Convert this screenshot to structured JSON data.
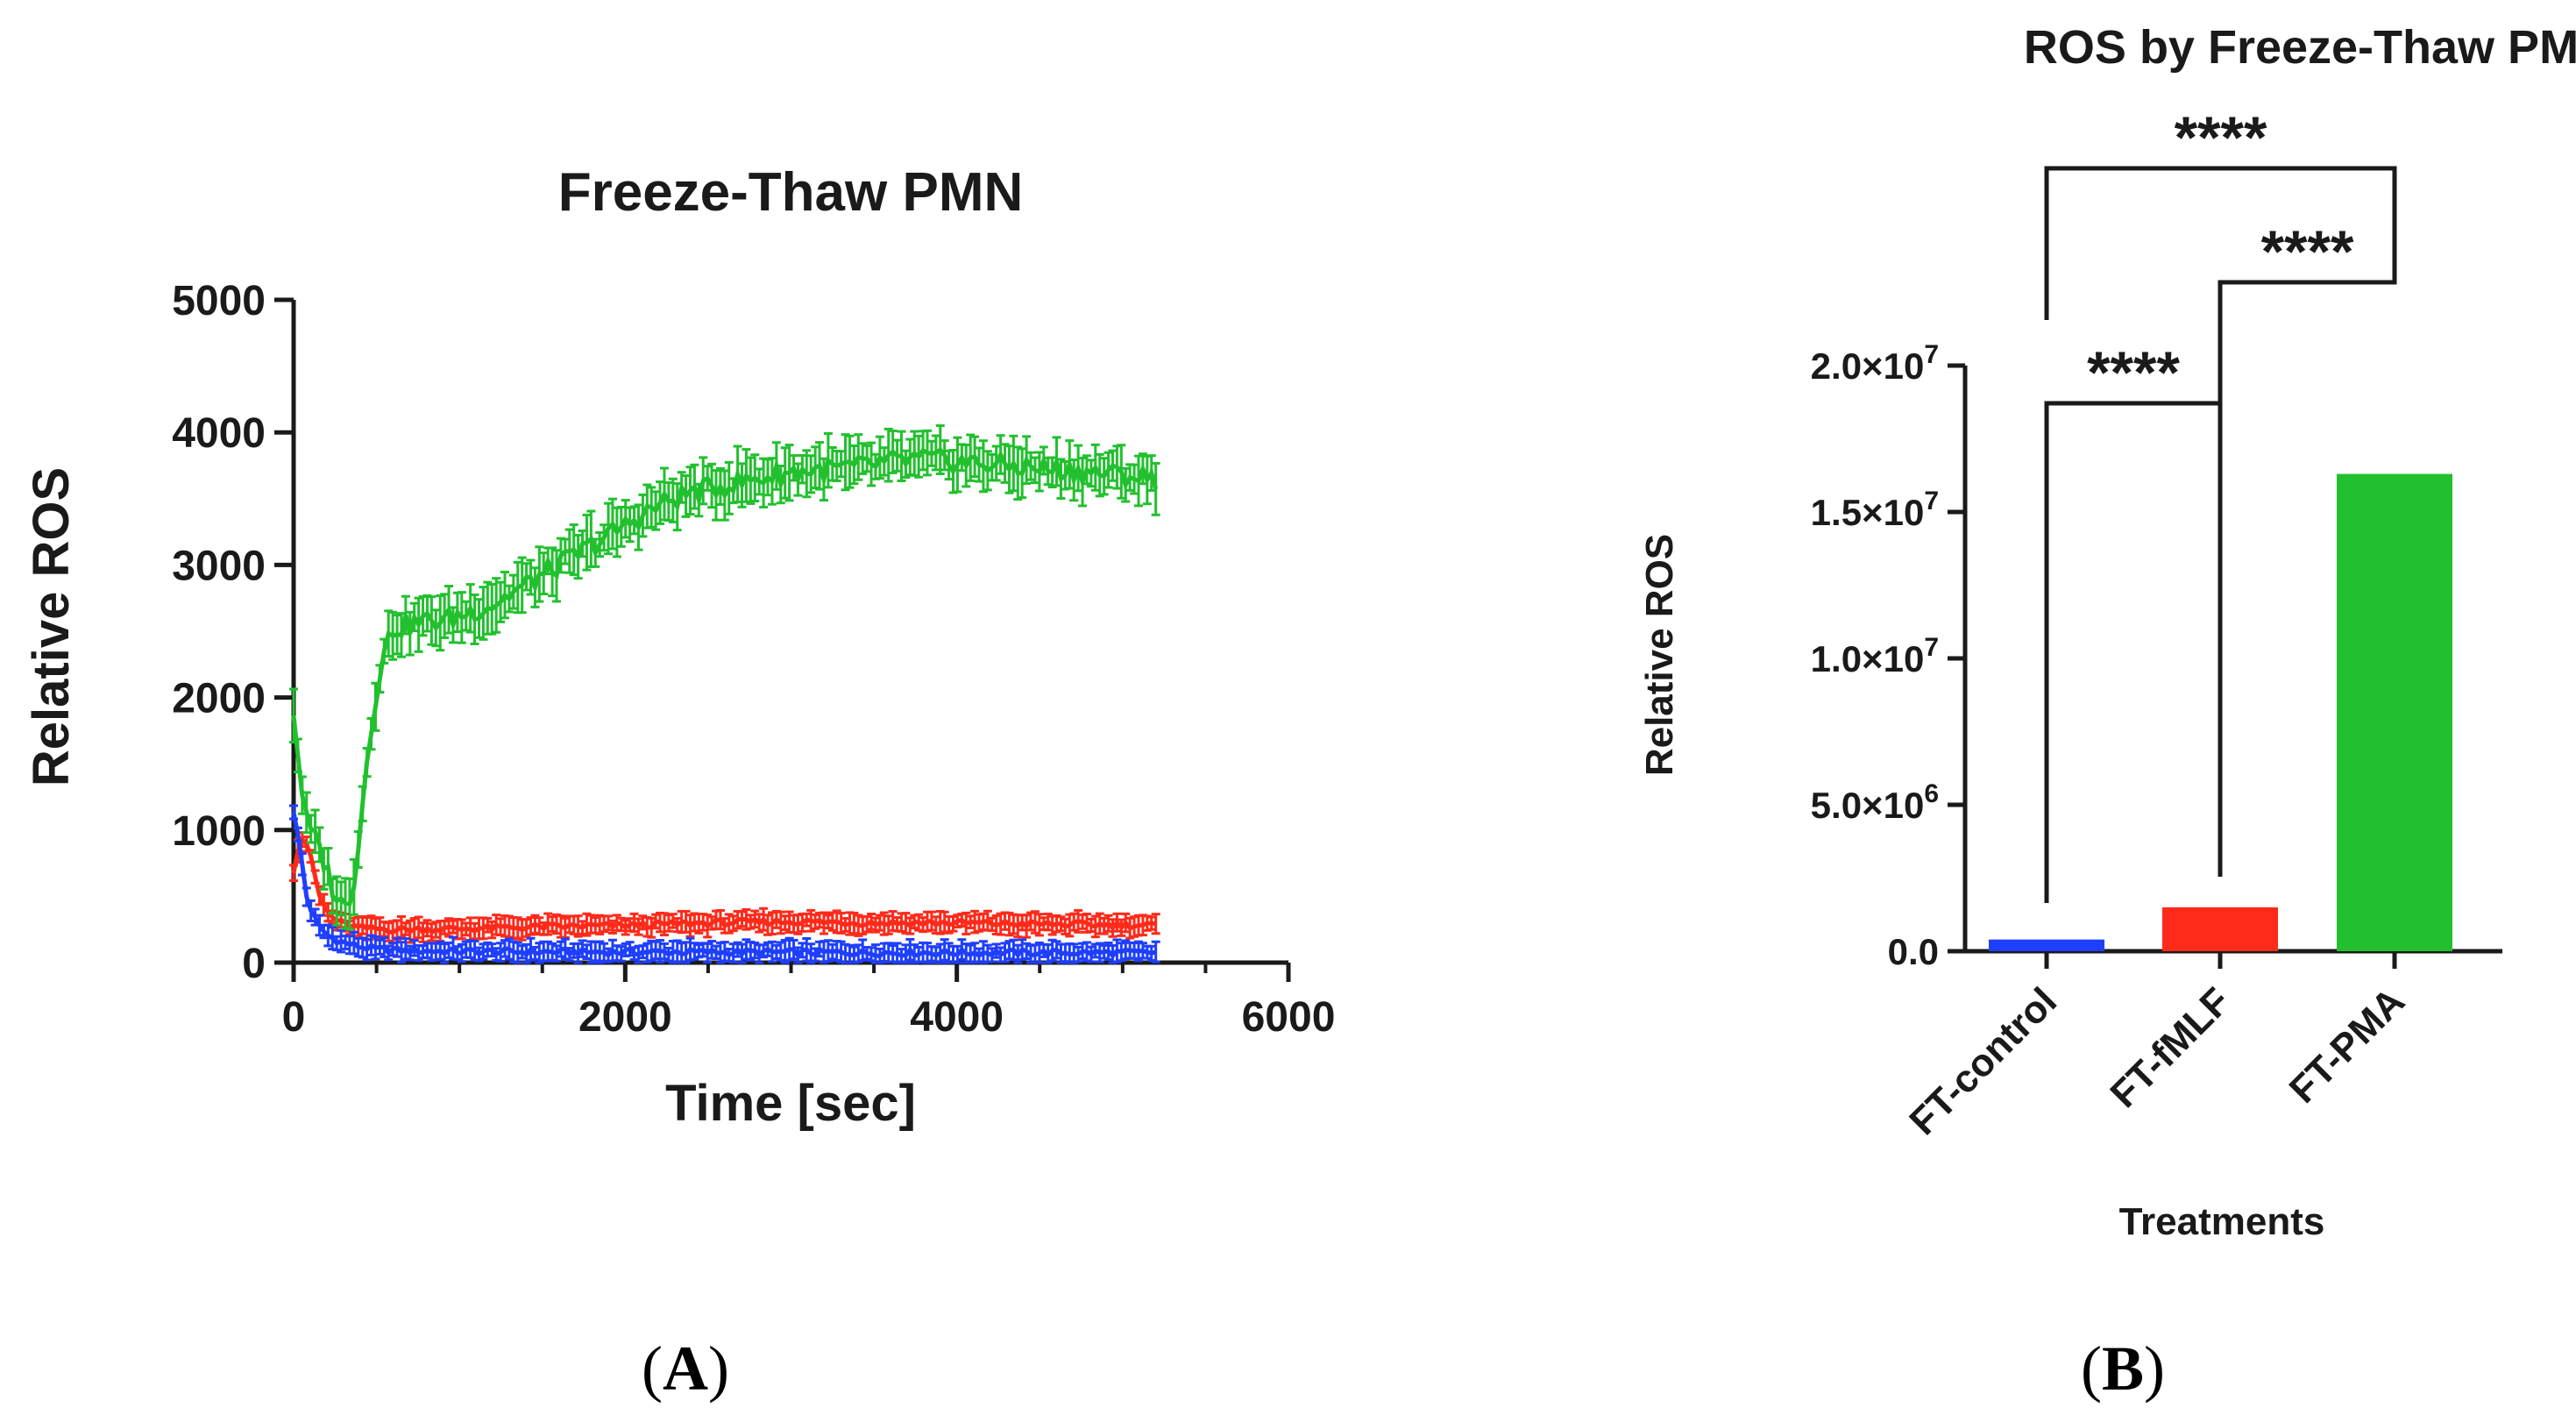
{
  "chart_data": [
    {
      "type": "line",
      "panel": "A",
      "title": "Freeze-Thaw PMN",
      "xlabel": "Time [sec]",
      "ylabel": "Relative ROS",
      "xlim": [
        0,
        6000
      ],
      "ylim": [
        0,
        5000
      ],
      "xticks": [
        0,
        2000,
        4000,
        6000
      ],
      "yticks": [
        0,
        1000,
        2000,
        3000,
        4000,
        5000
      ],
      "error_bars": true,
      "series": [
        {
          "name": "FT-control",
          "color": "#1f3fff",
          "points": [
            [
              0,
              1150
            ],
            [
              40,
              850
            ],
            [
              80,
              480
            ],
            [
              120,
              350
            ],
            [
              160,
              260
            ],
            [
              220,
              190
            ],
            [
              300,
              150
            ],
            [
              400,
              120
            ],
            [
              500,
              100
            ],
            [
              700,
              90
            ],
            [
              1000,
              85
            ],
            [
              1500,
              80
            ],
            [
              2000,
              80
            ],
            [
              2500,
              80
            ],
            [
              3000,
              78
            ],
            [
              3500,
              75
            ],
            [
              4000,
              75
            ],
            [
              4500,
              75
            ],
            [
              5000,
              75
            ],
            [
              5200,
              75
            ]
          ]
        },
        {
          "name": "FT-fMLF",
          "color": "#ff2a1a",
          "points": [
            [
              0,
              700
            ],
            [
              40,
              950
            ],
            [
              80,
              900
            ],
            [
              120,
              700
            ],
            [
              160,
              480
            ],
            [
              220,
              350
            ],
            [
              300,
              290
            ],
            [
              400,
              260
            ],
            [
              600,
              250
            ],
            [
              1000,
              255
            ],
            [
              1500,
              270
            ],
            [
              2000,
              280
            ],
            [
              2500,
              300
            ],
            [
              3000,
              310
            ],
            [
              3500,
              300
            ],
            [
              4000,
              300
            ],
            [
              4500,
              290
            ],
            [
              5000,
              285
            ],
            [
              5200,
              280
            ]
          ]
        },
        {
          "name": "FT-PMA",
          "color": "#22c02e",
          "points": [
            [
              0,
              1900
            ],
            [
              40,
              1400
            ],
            [
              80,
              1050
            ],
            [
              120,
              950
            ],
            [
              160,
              850
            ],
            [
              200,
              700
            ],
            [
              240,
              550
            ],
            [
              280,
              450
            ],
            [
              320,
              420
            ],
            [
              360,
              600
            ],
            [
              400,
              1000
            ],
            [
              440,
              1500
            ],
            [
              480,
              1900
            ],
            [
              520,
              2200
            ],
            [
              560,
              2400
            ],
            [
              600,
              2520
            ],
            [
              700,
              2550
            ],
            [
              800,
              2580
            ],
            [
              900,
              2580
            ],
            [
              1000,
              2620
            ],
            [
              1200,
              2700
            ],
            [
              1400,
              2850
            ],
            [
              1600,
              3000
            ],
            [
              1800,
              3150
            ],
            [
              2000,
              3300
            ],
            [
              2200,
              3450
            ],
            [
              2400,
              3550
            ],
            [
              2600,
              3600
            ],
            [
              2800,
              3650
            ],
            [
              3000,
              3700
            ],
            [
              3200,
              3720
            ],
            [
              3400,
              3740
            ],
            [
              3600,
              3780
            ],
            [
              3800,
              3800
            ],
            [
              4000,
              3780
            ],
            [
              4200,
              3760
            ],
            [
              4400,
              3740
            ],
            [
              4600,
              3720
            ],
            [
              4800,
              3700
            ],
            [
              5000,
              3680
            ],
            [
              5200,
              3650
            ]
          ]
        }
      ]
    },
    {
      "type": "bar",
      "panel": "B",
      "title": "ROS by Freeze-Thaw PMN",
      "xlabel": "Treatments",
      "ylabel": "Relative ROS",
      "ylim": [
        0,
        20000000
      ],
      "ytick_labels": [
        {
          "value": 0,
          "base": "0.0",
          "exp": ""
        },
        {
          "value": 5000000,
          "base": "5.0×10",
          "exp": "6"
        },
        {
          "value": 10000000,
          "base": "1.0×10",
          "exp": "7"
        },
        {
          "value": 15000000,
          "base": "1.5×10",
          "exp": "7"
        },
        {
          "value": 20000000,
          "base": "2.0×10",
          "exp": "7"
        }
      ],
      "categories": [
        "FT-control",
        "FT-fMLF",
        "FT-PMA"
      ],
      "values": [
        400000,
        1500000,
        16300000
      ],
      "colors": [
        "#1f3fff",
        "#ff2a1a",
        "#22c02e"
      ],
      "significance": [
        {
          "from": 0,
          "to": 1,
          "label": "****"
        },
        {
          "from": 1,
          "to": 2,
          "label": "****"
        },
        {
          "from": 0,
          "to": 2,
          "label": "****"
        }
      ]
    }
  ],
  "panels": {
    "a_label": "(A)",
    "a_letter": "A",
    "b_label": "(B)",
    "b_letter": "B"
  }
}
